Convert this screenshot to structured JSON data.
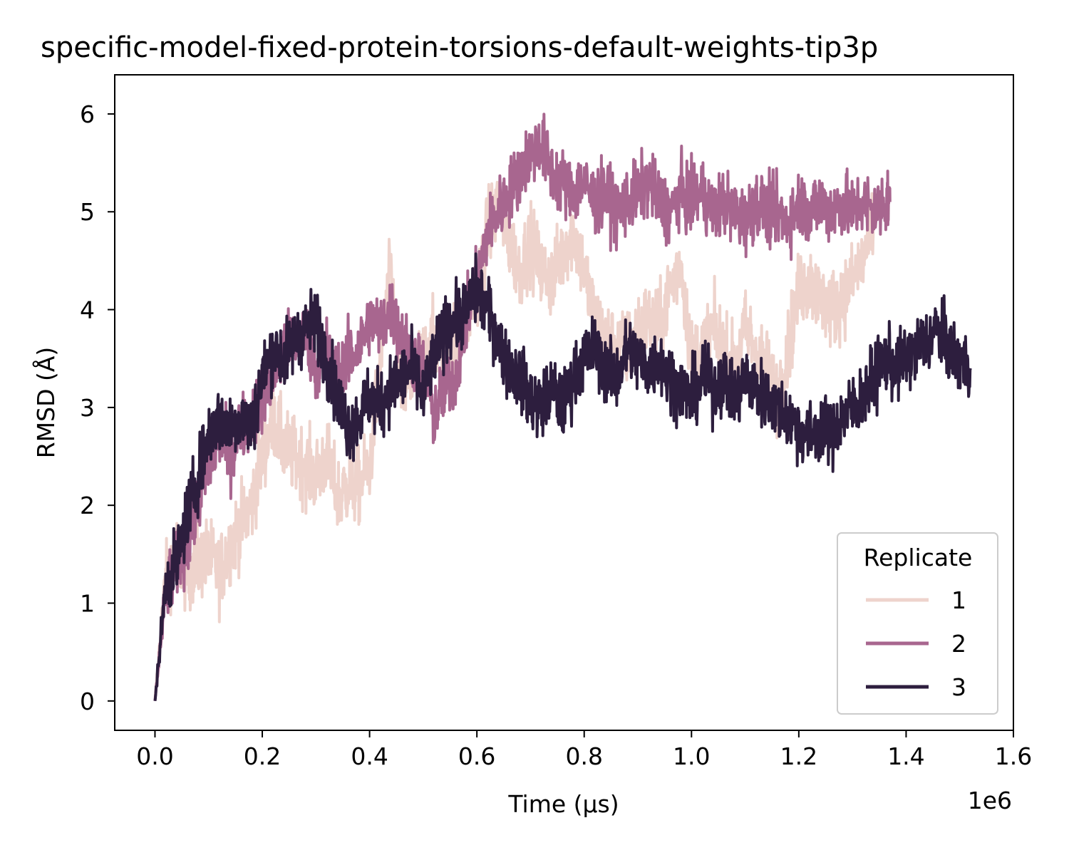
{
  "chart_data": {
    "type": "line",
    "title": "specific-model-fixed-protein-torsions-default-weights-tip3p",
    "xlabel": "Time (µs)",
    "ylabel": "RMSD (Å)",
    "x_offset_text": "1e6",
    "xlim": [
      -75000,
      1600000
    ],
    "ylim": [
      -0.3,
      6.4
    ],
    "xticks": [
      0,
      200000,
      400000,
      600000,
      800000,
      1000000,
      1200000,
      1400000,
      1600000
    ],
    "xtick_labels": [
      "0.0",
      "0.2",
      "0.4",
      "0.6",
      "0.8",
      "1.0",
      "1.2",
      "1.4",
      "1.6"
    ],
    "yticks": [
      0,
      1,
      2,
      3,
      4,
      5,
      6
    ],
    "ytick_labels": [
      "0",
      "1",
      "2",
      "3",
      "4",
      "5",
      "6"
    ],
    "grid": false,
    "legend": {
      "title": "Replicate",
      "placement": "lower-right"
    },
    "series": [
      {
        "name": "1",
        "color": "#eed3cc",
        "x": [
          0,
          20000,
          40000,
          60000,
          80000,
          100000,
          120000,
          140000,
          160000,
          180000,
          200000,
          220000,
          240000,
          260000,
          280000,
          300000,
          320000,
          340000,
          360000,
          380000,
          400000,
          420000,
          440000,
          460000,
          480000,
          500000,
          520000,
          540000,
          560000,
          580000,
          600000,
          620000,
          640000,
          660000,
          680000,
          700000,
          720000,
          740000,
          760000,
          780000,
          800000,
          820000,
          840000,
          860000,
          880000,
          900000,
          920000,
          940000,
          960000,
          980000,
          1000000,
          1020000,
          1040000,
          1060000,
          1080000,
          1100000,
          1120000,
          1140000,
          1160000,
          1180000,
          1200000,
          1220000,
          1240000,
          1260000,
          1280000,
          1300000,
          1320000,
          1340000
        ],
        "y": [
          0,
          1.3,
          1.5,
          1.3,
          1.4,
          1.5,
          1.3,
          1.6,
          1.8,
          2.0,
          2.5,
          2.9,
          2.6,
          2.5,
          2.4,
          2.3,
          2.5,
          2.1,
          2.2,
          2.2,
          2.4,
          3.5,
          4.4,
          3.1,
          3.3,
          3.5,
          3.7,
          3.6,
          3.7,
          3.9,
          4.2,
          4.8,
          5.1,
          4.7,
          4.4,
          4.7,
          4.4,
          4.3,
          4.6,
          4.8,
          4.4,
          3.9,
          3.7,
          3.6,
          3.6,
          3.8,
          3.9,
          3.8,
          4.2,
          4.5,
          3.5,
          3.6,
          3.8,
          3.6,
          3.4,
          3.8,
          3.6,
          3.4,
          3.1,
          3.6,
          4.2,
          4.3,
          4.1,
          4.0,
          4.1,
          4.3,
          4.5,
          4.9
        ]
      },
      {
        "name": "2",
        "color": "#a8668f",
        "x": [
          0,
          20000,
          40000,
          60000,
          80000,
          100000,
          120000,
          140000,
          160000,
          180000,
          200000,
          220000,
          240000,
          260000,
          280000,
          300000,
          320000,
          340000,
          360000,
          380000,
          400000,
          420000,
          440000,
          460000,
          480000,
          500000,
          520000,
          540000,
          560000,
          580000,
          600000,
          620000,
          640000,
          660000,
          680000,
          700000,
          720000,
          740000,
          760000,
          780000,
          800000,
          820000,
          840000,
          860000,
          880000,
          900000,
          920000,
          940000,
          960000,
          980000,
          1000000,
          1020000,
          1040000,
          1060000,
          1080000,
          1100000,
          1120000,
          1140000,
          1160000,
          1180000,
          1200000,
          1220000,
          1240000,
          1260000,
          1280000,
          1300000,
          1320000,
          1340000,
          1360000,
          1370000
        ],
        "y": [
          0,
          1.1,
          1.4,
          1.6,
          2.0,
          2.4,
          2.7,
          2.5,
          2.8,
          2.9,
          3.1,
          3.3,
          3.6,
          3.7,
          3.8,
          3.4,
          3.6,
          3.3,
          3.5,
          3.6,
          3.9,
          3.8,
          4.0,
          3.7,
          3.5,
          3.4,
          2.9,
          3.2,
          3.3,
          3.9,
          4.3,
          4.8,
          5.0,
          5.2,
          5.4,
          5.6,
          5.7,
          5.4,
          5.3,
          5.2,
          5.3,
          5.1,
          5.2,
          5.0,
          5.1,
          5.2,
          5.3,
          5.1,
          5.0,
          5.2,
          5.1,
          5.2,
          5.0,
          5.1,
          5.0,
          4.9,
          5.1,
          5.0,
          5.0,
          4.9,
          5.1,
          5.0,
          5.1,
          5.0,
          5.1,
          5.0,
          5.1,
          5.0,
          5.1,
          5.1
        ]
      },
      {
        "name": "3",
        "color": "#2d1e3e",
        "x": [
          0,
          20000,
          40000,
          60000,
          80000,
          100000,
          120000,
          140000,
          160000,
          180000,
          200000,
          220000,
          240000,
          260000,
          280000,
          300000,
          320000,
          340000,
          360000,
          380000,
          400000,
          420000,
          440000,
          460000,
          480000,
          500000,
          520000,
          540000,
          560000,
          580000,
          600000,
          620000,
          640000,
          660000,
          680000,
          700000,
          720000,
          740000,
          760000,
          780000,
          800000,
          820000,
          840000,
          860000,
          880000,
          900000,
          920000,
          940000,
          960000,
          980000,
          1000000,
          1020000,
          1040000,
          1060000,
          1080000,
          1100000,
          1120000,
          1140000,
          1160000,
          1180000,
          1200000,
          1220000,
          1240000,
          1260000,
          1280000,
          1300000,
          1320000,
          1340000,
          1360000,
          1380000,
          1400000,
          1420000,
          1440000,
          1460000,
          1480000,
          1500000,
          1520000
        ],
        "y": [
          0,
          1.2,
          1.4,
          1.9,
          2.3,
          2.7,
          2.9,
          2.8,
          2.9,
          2.8,
          3.3,
          3.6,
          3.5,
          3.7,
          3.8,
          3.9,
          3.5,
          3.1,
          2.8,
          2.9,
          3.1,
          3.0,
          3.2,
          3.3,
          3.4,
          3.1,
          3.5,
          3.8,
          3.9,
          4.0,
          4.2,
          4.0,
          3.7,
          3.4,
          3.3,
          3.1,
          3.0,
          3.2,
          3.0,
          3.3,
          3.5,
          3.6,
          3.4,
          3.3,
          3.6,
          3.5,
          3.4,
          3.5,
          3.3,
          3.2,
          3.1,
          3.3,
          3.2,
          3.3,
          3.1,
          3.3,
          3.2,
          3.1,
          3.0,
          2.9,
          2.8,
          2.7,
          2.8,
          2.7,
          2.9,
          3.0,
          3.1,
          3.3,
          3.5,
          3.4,
          3.5,
          3.6,
          3.7,
          3.8,
          3.6,
          3.5,
          3.4
        ]
      }
    ]
  }
}
